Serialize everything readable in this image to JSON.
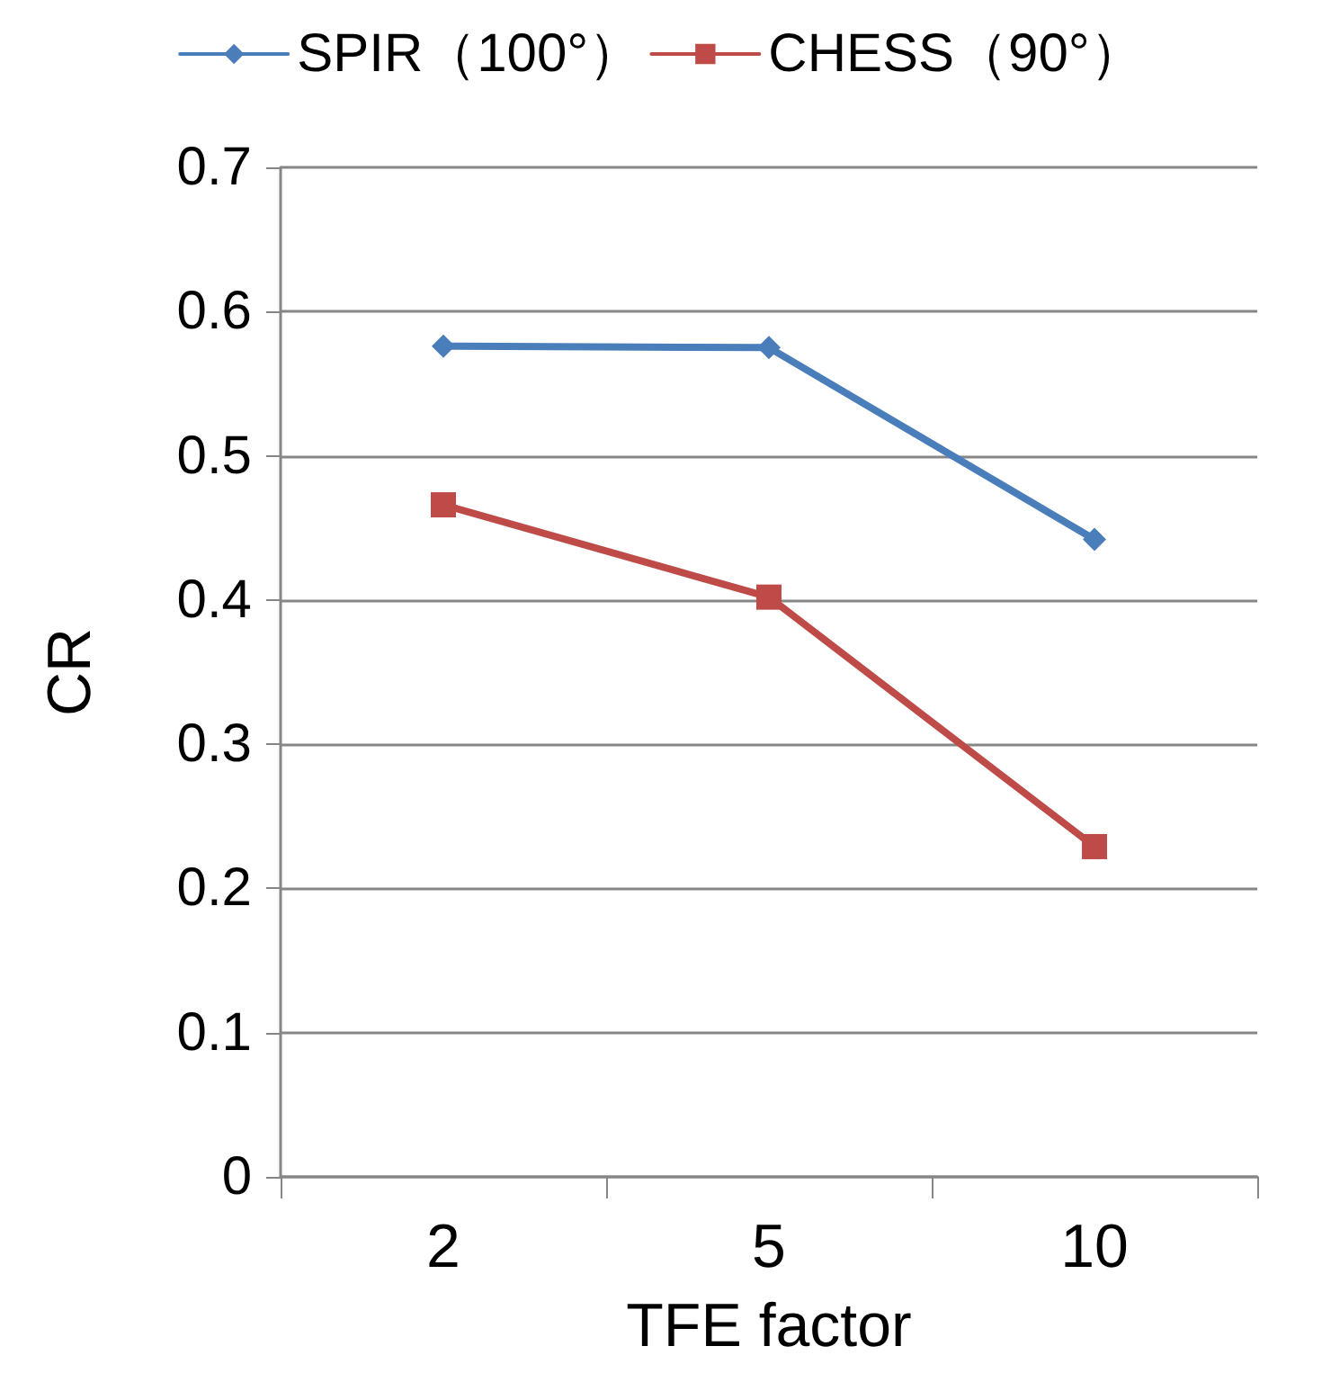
{
  "chart_data": {
    "type": "line",
    "xlabel": "TFE factor",
    "ylabel": "CR",
    "categories": [
      "2",
      "5",
      "10"
    ],
    "series": [
      {
        "name": "SPIR（100°）",
        "color": "#4a7ebb",
        "marker": "diamond",
        "values": [
          0.576,
          0.575,
          0.442
        ]
      },
      {
        "name": "CHESS（90°）",
        "color": "#be4b48",
        "marker": "square",
        "values": [
          0.466,
          0.402,
          0.229
        ]
      }
    ],
    "ylim": [
      0,
      0.7
    ],
    "yticks": [
      0,
      0.1,
      0.2,
      0.3,
      0.4,
      0.5,
      0.6,
      0.7
    ],
    "grid": "y",
    "legend": "top",
    "line_style": "solid"
  }
}
